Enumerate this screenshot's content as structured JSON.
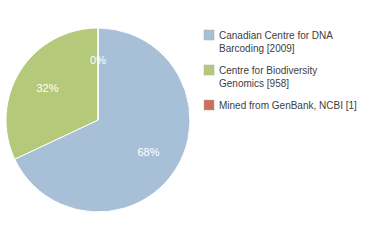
{
  "chart_data": {
    "type": "pie",
    "categories": [
      "Canadian Centre for DNA\nBarcoding [2009]",
      "Centre for Biodiversity\nGenomics [958]",
      "Mined from GenBank, NCBI [1]"
    ],
    "values": [
      68,
      32,
      0
    ],
    "value_labels": [
      "68%",
      "32%",
      "0%"
    ],
    "colors": [
      "#a8bfd8",
      "#b5c97a",
      "#cd6e5a"
    ],
    "data_labels": true,
    "legend": "right"
  }
}
